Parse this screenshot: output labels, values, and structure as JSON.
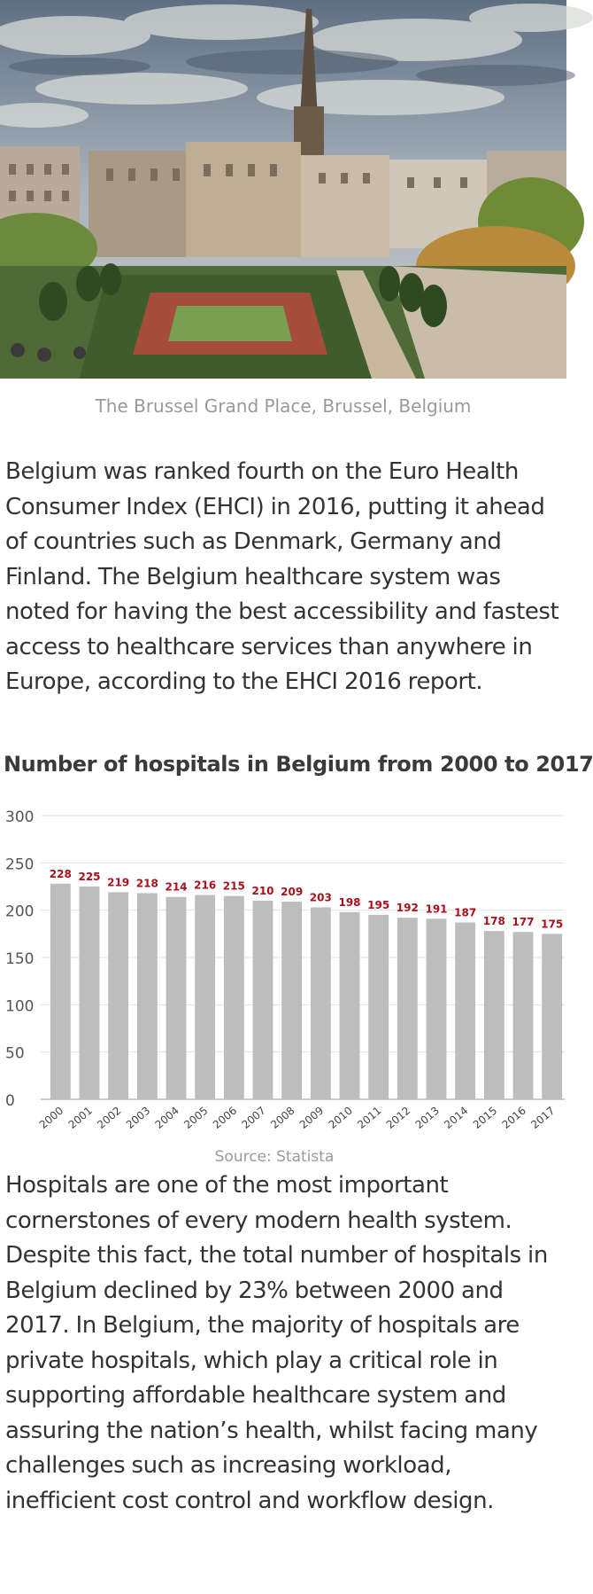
{
  "photo": {
    "subject": "Brussels Mont des Arts garden with city hall spire"
  },
  "caption": "The Brussel Grand Place, Brussel, Belgium",
  "intro_paragraph": "Belgium was ranked fourth on the Euro Health Consumer Index (EHCI) in 2016, putting it ahead of countries such as Denmark, Germany and Finland. The Belgium healthcare system was noted for having the best accessibility and fastest access to healthcare services than anywhere in Europe, according to the EHCI 2016 report.",
  "chart_title": "Number of  hospitals in Belgium from 2000 to 2017",
  "chart_data": {
    "type": "bar",
    "title": "Number of  hospitals in Belgium from 2000 to 2017",
    "xlabel": "",
    "ylabel": "",
    "categories": [
      "2000",
      "2001",
      "2002",
      "2003",
      "2004",
      "2005",
      "2006",
      "2007",
      "2008",
      "2009",
      "2010",
      "2011",
      "2012",
      "2013",
      "2014",
      "2015",
      "2016",
      "2017"
    ],
    "values": [
      228,
      225,
      219,
      218,
      214,
      216,
      215,
      210,
      209,
      203,
      198,
      195,
      192,
      191,
      187,
      178,
      177,
      175
    ],
    "ylim": [
      0,
      300
    ],
    "yticks": [
      0,
      50,
      100,
      150,
      200,
      250,
      300
    ],
    "grid": true,
    "bar_color": "#bdbdbd",
    "label_color": "#a8101a"
  },
  "source": "Source: Statista",
  "body_paragraph": "Hospitals are one of the most important cornerstones of every modern health system. Despite this fact, the total number of hospitals in Belgium declined by 23% between 2000 and 2017. In Belgium, the majority of hospitals are private hospitals, which play a critical role in supporting affordable healthcare system and assuring the nation’s health, whilst facing many challenges such as increasing workload, inefficient cost control and workflow design."
}
